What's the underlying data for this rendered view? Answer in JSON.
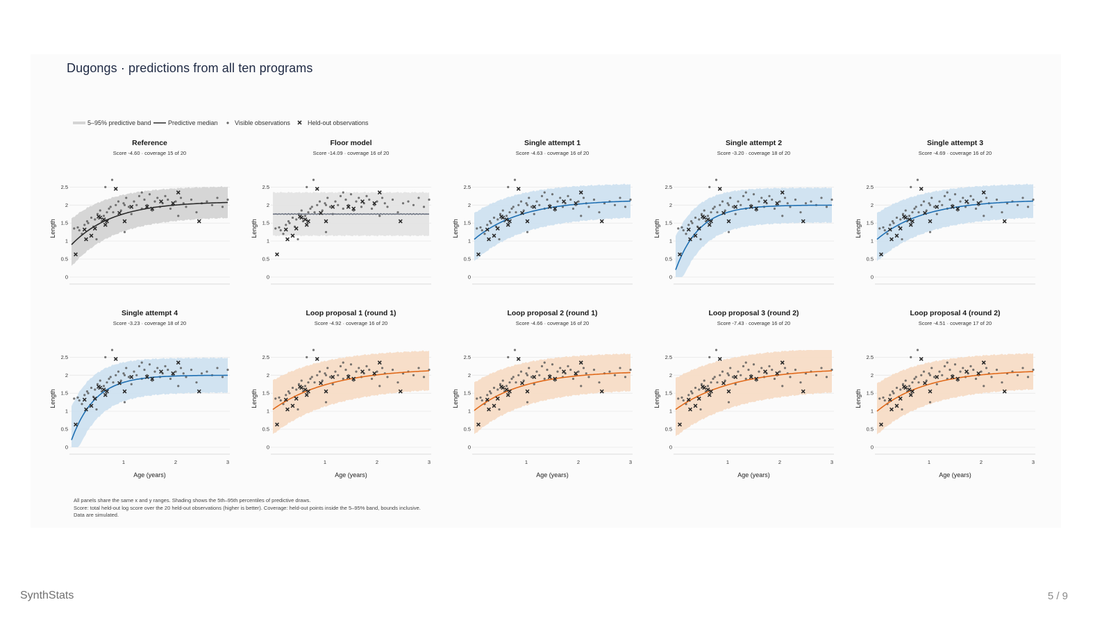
{
  "title": "Dugongs · predictions from all ten programs",
  "legend": {
    "band": "5–95% predictive band",
    "median": "Predictive median",
    "visible": "Visible observations",
    "heldout": "Held-out observations"
  },
  "footer": {
    "brand": "SynthStats",
    "page": "5 / 9"
  },
  "notes": [
    "All panels share the same x and y ranges. Shading shows the 5th–95th percentiles of predictive draws.",
    "Score: total held-out log score over the 20 held-out observations (higher is better). Coverage: held-out points inside the 5–95% band, bounds inclusive.",
    "Data are simulated."
  ],
  "colors": {
    "reference": "#2b2b2b",
    "reference_band": "#d4d4d4",
    "floor": "#6b7280",
    "floor_band": "#e4e4e4",
    "single": "#1f6fb2",
    "single_band": "#cfe2f0",
    "loop": "#e0691a",
    "loop_band": "#f7dcc6",
    "points": "#555555"
  },
  "chart_data": {
    "type": "line",
    "xlabel": "Age (years)",
    "ylabel": "Length",
    "xlim": [
      0,
      3
    ],
    "ylim": [
      0,
      2.7
    ],
    "xticks": [
      "1",
      "2",
      "3"
    ],
    "yticks": [
      "0",
      "0.5",
      "1",
      "1.5",
      "2",
      "2.5"
    ],
    "visible_observations": {
      "x": [
        0.05,
        0.12,
        0.15,
        0.2,
        0.25,
        0.3,
        0.32,
        0.38,
        0.42,
        0.45,
        0.5,
        0.55,
        0.58,
        0.62,
        0.68,
        0.72,
        0.75,
        0.8,
        0.85,
        0.9,
        0.95,
        1.0,
        1.02,
        1.05,
        1.1,
        1.15,
        1.2,
        1.25,
        1.3,
        1.35,
        1.4,
        1.45,
        1.5,
        1.55,
        1.6,
        1.65,
        1.7,
        1.75,
        1.8,
        1.85,
        1.9,
        1.95,
        2.0,
        2.05,
        2.1,
        2.15,
        2.2,
        2.3,
        2.4,
        2.5,
        2.6,
        2.7,
        2.8,
        2.9,
        3.0,
        0.65,
        0.78,
        1.35,
        1.02,
        0.48
      ],
      "y": [
        1.35,
        1.38,
        1.3,
        1.2,
        1.45,
        1.55,
        1.5,
        1.65,
        1.4,
        1.6,
        1.75,
        1.85,
        1.55,
        1.7,
        1.8,
        1.9,
        1.95,
        1.8,
        2.0,
        2.1,
        1.85,
        2.05,
        2.0,
        2.2,
        1.95,
        1.75,
        2.1,
        2.0,
        2.25,
        1.9,
        2.15,
        2.0,
        2.3,
        1.85,
        2.1,
        2.2,
        1.95,
        2.05,
        2.25,
        2.15,
        1.9,
        2.0,
        2.1,
        1.7,
        2.2,
        2.05,
        1.95,
        2.15,
        1.8,
        2.05,
        2.1,
        2.0,
        2.2,
        1.95,
        2.15,
        2.5,
        2.7,
        2.35,
        1.25,
        1.05
      ]
    },
    "heldout_observations": {
      "x": [
        0.08,
        0.28,
        0.25,
        0.38,
        0.52,
        0.55,
        0.68,
        0.45,
        0.62,
        0.65,
        0.85,
        0.92,
        1.02,
        1.15,
        1.45,
        1.55,
        1.95,
        2.05,
        2.45,
        1.72
      ],
      "y": [
        0.63,
        1.05,
        1.32,
        1.15,
        1.68,
        1.65,
        1.55,
        1.35,
        1.6,
        1.45,
        2.45,
        1.78,
        1.55,
        1.95,
        1.95,
        1.9,
        2.05,
        2.35,
        1.55,
        2.1
      ]
    },
    "panels": [
      {
        "title": "Reference",
        "subtitle": "Score -4.60 · coverage 15 of 20",
        "kind": "reference",
        "L": 2.1,
        "A": 1.2,
        "k": 1.25,
        "w": 0.42
      },
      {
        "title": "Floor model",
        "subtitle": "Score -14.09 · coverage 16 of 20",
        "kind": "floor",
        "L": 1.75,
        "A": 0,
        "k": 1,
        "w": 0.6
      },
      {
        "title": "Single attempt 1",
        "subtitle": "Score -4.63 · coverage 16 of 20",
        "kind": "single",
        "L": 2.15,
        "A": 1.1,
        "k": 1.1,
        "w": 0.45
      },
      {
        "title": "Single attempt 2",
        "subtitle": "Score -3.20 · coverage 18 of 20",
        "kind": "single",
        "L": 2.0,
        "A": 1.8,
        "k": 2.2,
        "w": 0.48
      },
      {
        "title": "Single attempt 3",
        "subtitle": "Score -4.69 · coverage 16 of 20",
        "kind": "single",
        "L": 2.15,
        "A": 1.1,
        "k": 1.1,
        "w": 0.45
      },
      {
        "title": "Single attempt 4",
        "subtitle": "Score -3.23 · coverage 18 of 20",
        "kind": "single",
        "L": 2.0,
        "A": 1.8,
        "k": 2.2,
        "w": 0.48
      },
      {
        "title": "Loop proposal 1 (round 1)",
        "subtitle": "Score -4.92 · coverage 16 of 20",
        "kind": "loop",
        "L": 2.2,
        "A": 1.15,
        "k": 0.9,
        "w": 0.52
      },
      {
        "title": "Loop proposal 2 (round 1)",
        "subtitle": "Score -4.66 · coverage 16 of 20",
        "kind": "loop",
        "L": 2.12,
        "A": 1.1,
        "k": 1.05,
        "w": 0.5
      },
      {
        "title": "Loop proposal 3 (round 2)",
        "subtitle": "Score -7.43 · coverage 16 of 20",
        "kind": "loop",
        "L": 2.2,
        "A": 1.15,
        "k": 0.9,
        "w": 0.58
      },
      {
        "title": "Loop proposal 4 (round 2)",
        "subtitle": "Score -4.51 · coverage 17 of 20",
        "kind": "loop",
        "L": 2.15,
        "A": 1.15,
        "k": 1.05,
        "w": 0.48
      }
    ]
  }
}
